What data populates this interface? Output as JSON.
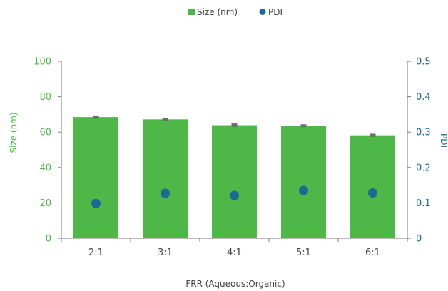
{
  "chart_data": {
    "type": "bar",
    "categories": [
      "2:1",
      "3:1",
      "4:1",
      "5:1",
      "6:1"
    ],
    "xlabel": "FRR (Aqueous:Organic)",
    "series": [
      {
        "name": "Size (nm)",
        "type": "bar",
        "axis": "left",
        "values": [
          68.5,
          67.2,
          63.9,
          63.6,
          58.2
        ],
        "error": [
          0.7,
          0.6,
          0.8,
          0.6,
          0.7
        ],
        "color": "#4db848"
      },
      {
        "name": "PDI",
        "type": "scatter",
        "axis": "right",
        "values": [
          0.098,
          0.127,
          0.121,
          0.135,
          0.128
        ],
        "color": "#1a6a96"
      }
    ],
    "y_left": {
      "label": "Size (nm)",
      "range": [
        0,
        100
      ],
      "ticks": [
        "0",
        "20",
        "40",
        "60",
        "80",
        "100"
      ],
      "color": "#4db848"
    },
    "y_right": {
      "label": "PDI",
      "range": [
        0,
        0.5
      ],
      "ticks": [
        "0",
        "0.1",
        "0.2",
        "0.3",
        "0.4",
        "0.5"
      ],
      "color": "#1a6a96"
    },
    "legend": {
      "position": "top-center",
      "items": [
        "Size (nm)",
        "PDI"
      ]
    },
    "grid": false
  }
}
